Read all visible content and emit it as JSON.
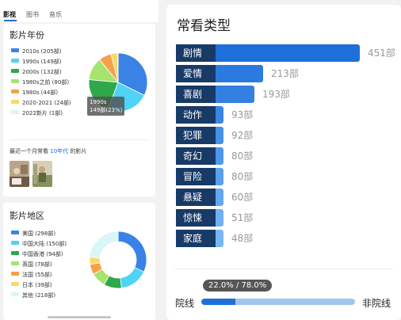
{
  "tabs": [
    "影视",
    "图书",
    "音乐"
  ],
  "year_card": {
    "title": "影片年份",
    "legend": [
      {
        "label": "2010s (205部)",
        "color": "#3b82e6"
      },
      {
        "label": "1990s (149部)",
        "color": "#4fd3f7"
      },
      {
        "label": "2000s (132部)",
        "color": "#2ea84a"
      },
      {
        "label": "1980s之前 (80部)",
        "color": "#a6e36f"
      },
      {
        "label": "1980s (44部)",
        "color": "#f5a04a"
      },
      {
        "label": "2020-2021 (24部)",
        "color": "#f8d96a"
      },
      {
        "label": "2022新片 (1部)",
        "color": "#d9f6f8"
      }
    ],
    "tooltip_line1": "1990s",
    "tooltip_line2": "149部(23%)",
    "recent_prefix": "最近一个月常看 ",
    "recent_link": "10年代",
    "recent_suffix": " 的影片"
  },
  "region_card": {
    "title": "影片地区",
    "legend": [
      {
        "label": "美国 (298部)",
        "color": "#3b82e6"
      },
      {
        "label": "中国大陆 (150部)",
        "color": "#4fd3f7"
      },
      {
        "label": "中国香港 (94部)",
        "color": "#2ea84a"
      },
      {
        "label": "英国 (78部)",
        "color": "#a6e36f"
      },
      {
        "label": "法国 (55部)",
        "color": "#f5a04a"
      },
      {
        "label": "日本 (39部)",
        "color": "#f8d96a"
      },
      {
        "label": "其他 (218部)",
        "color": "#d9f6f8"
      }
    ]
  },
  "genre_card": {
    "title": "常看类型",
    "split_pill": "22.0% / 78.0%",
    "split_left": "院线",
    "split_right": "非院线",
    "split_fraction": 0.22
  },
  "chart_data": [
    {
      "type": "pie",
      "title": "影片年份",
      "categories": [
        "2010s",
        "1990s",
        "2000s",
        "1980s之前",
        "1980s",
        "2020-2021",
        "2022新片"
      ],
      "values": [
        205,
        149,
        132,
        80,
        44,
        24,
        1
      ]
    },
    {
      "type": "pie",
      "title": "影片地区",
      "categories": [
        "美国",
        "中国大陆",
        "中国香港",
        "英国",
        "法国",
        "日本",
        "其他"
      ],
      "values": [
        298,
        150,
        94,
        78,
        55,
        39,
        218
      ]
    },
    {
      "type": "bar",
      "title": "常看类型",
      "categories": [
        "剧情",
        "爱情",
        "喜剧",
        "动作",
        "犯罪",
        "奇幻",
        "冒险",
        "悬疑",
        "惊悚",
        "家庭"
      ],
      "values": [
        451,
        213,
        193,
        93,
        92,
        80,
        80,
        60,
        51,
        48
      ],
      "value_labels": [
        "451部",
        "213部",
        "193部",
        "93部",
        "92部",
        "80部",
        "80部",
        "60部",
        "51部",
        "48部"
      ]
    }
  ]
}
